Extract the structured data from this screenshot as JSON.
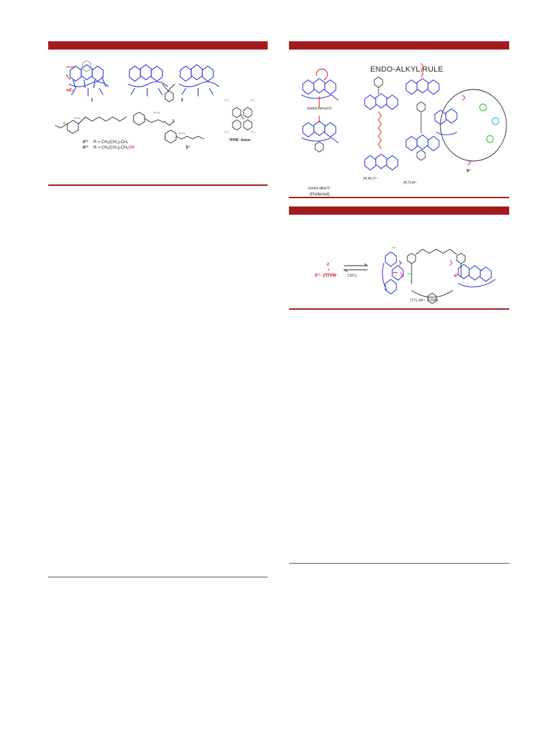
{
  "fig_a": {
    "label_meso": "meso",
    "label_face": "Face",
    "compound_1": "1",
    "compound_2": "2",
    "compound_3_label": "3²⁺",
    "compound_3_formula": "R = CH₂(CH₂)₂CH₃",
    "compound_4_label": "4²⁺",
    "compound_4_formula_prefix": "R = CH₂(CH₂)₂CH₂",
    "compound_4_formula_oh": "OH",
    "compound_5": "5⁺",
    "anion_label": "TFPB⁻ Anion",
    "cf3": "CF₃",
    "r_group": "R",
    "nh2": "N⁺H₂"
  },
  "fig_b": {
    "title": "ENDO-ALKYL RULE",
    "benzyl_label": "(endo)-benzyl-6⁺",
    "alkyl_label": "(endo)-alkyl-6⁺",
    "preferred": "(Preferred)",
    "hh_label": "(H,H)-7²⁺",
    "ht_label": "(H,T)-8²⁺",
    "label_9": "9⁺"
  },
  "fig_c": {
    "reactant_2": "2",
    "plus": "+",
    "reactant_3": "3²⁺· 2TFPB⁻",
    "solvent": "CDCl₃",
    "product": "(T,T)-10²⁺· 2TFPB⁻",
    "me1": "Me",
    "me2": "Me",
    "me3": "Me"
  }
}
